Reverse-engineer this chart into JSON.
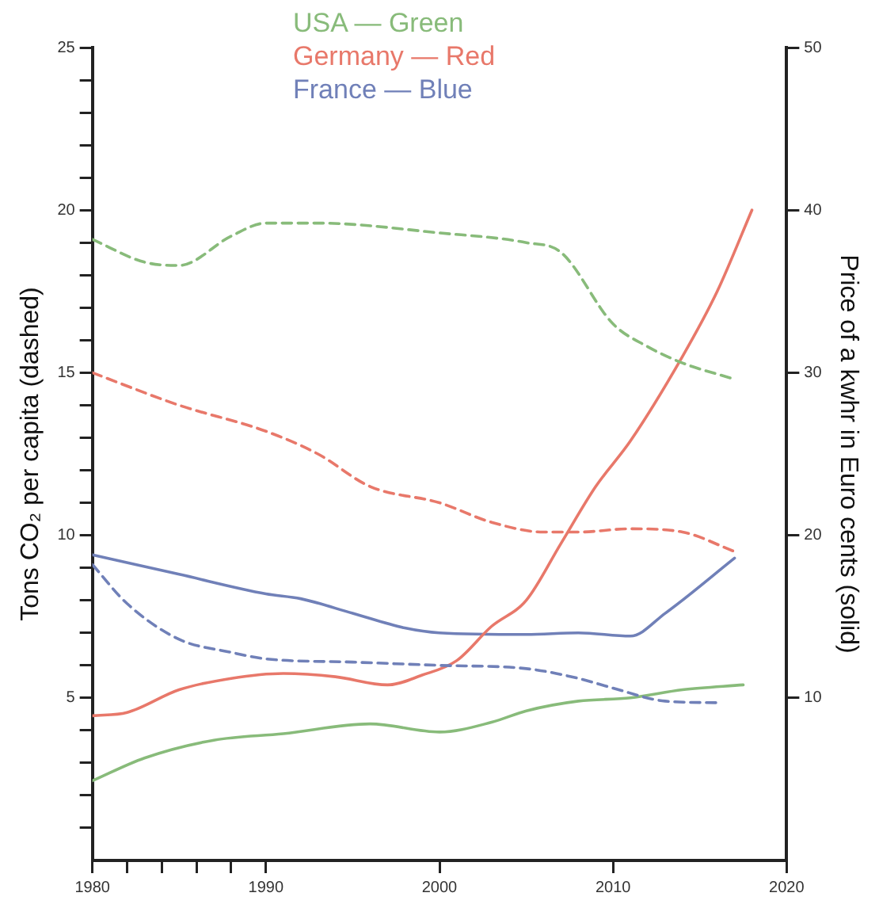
{
  "chart_data": {
    "type": "line",
    "ylabel": "Tons CO₂ per capita (dashed)",
    "y2label": "Price of a kwhr in Euro cents (solid)",
    "legend": "top",
    "grid": false,
    "marker": "none",
    "xlim": [
      1980,
      2020
    ],
    "xticks": [
      1980,
      {
        "value": 1982,
        "label": null
      },
      {
        "value": 1984,
        "label": null
      },
      {
        "value": 1986,
        "label": null
      },
      {
        "value": 1988,
        "label": null
      },
      1990,
      2000,
      2010,
      2020
    ],
    "ylim": [
      0,
      25
    ],
    "yticks": [
      {
        "value": 1,
        "label": null
      },
      {
        "value": 2,
        "label": null
      },
      {
        "value": 3,
        "label": null
      },
      {
        "value": 4,
        "label": null
      },
      5,
      {
        "value": 6,
        "label": null
      },
      {
        "value": 7,
        "label": null
      },
      {
        "value": 8,
        "label": null
      },
      {
        "value": 9,
        "label": null
      },
      10,
      {
        "value": 11,
        "label": null
      },
      {
        "value": 12,
        "label": null
      },
      {
        "value": 13,
        "label": null
      },
      {
        "value": 14,
        "label": null
      },
      15,
      {
        "value": 16,
        "label": null
      },
      {
        "value": 17,
        "label": null
      },
      {
        "value": 18,
        "label": null
      },
      {
        "value": 19,
        "label": null
      },
      20,
      {
        "value": 21,
        "label": null
      },
      {
        "value": 22,
        "label": null
      },
      {
        "value": 23,
        "label": null
      },
      {
        "value": 24,
        "label": null
      },
      25
    ],
    "y2lim": [
      0,
      50
    ],
    "y2ticks": [
      10,
      20,
      30,
      40,
      50
    ],
    "series": [
      {
        "name": "USA — Green",
        "color": "#88bb7a",
        "line_style": "dashed",
        "x": [
          1980,
          1983,
          1985,
          1988,
          1990,
          1993,
          2000,
          2005,
          2007,
          2010,
          2012,
          2014,
          2017
        ],
        "values": [
          19.1,
          18.4,
          18.3,
          19.2,
          19.6,
          19.6,
          19.3,
          19.0,
          18.7,
          16.5,
          15.8,
          15.3,
          14.8
        ]
      },
      {
        "name": "Germany — Red",
        "color": "#e8786a",
        "line_style": "dashed",
        "x": [
          1980,
          1985,
          1990,
          1993,
          1996,
          2000,
          2003,
          2006,
          2008,
          2011,
          2014,
          2017
        ],
        "values": [
          15.0,
          14.0,
          13.2,
          12.5,
          11.5,
          11.0,
          10.4,
          10.1,
          10.1,
          10.2,
          10.1,
          9.5
        ]
      },
      {
        "name": "France — Blue",
        "color": "#7080b8",
        "line_style": "dashed",
        "x": [
          1980,
          1982,
          1985,
          1988,
          1990,
          1995,
          2000,
          2005,
          2008,
          2010,
          2013,
          2016
        ],
        "values": [
          9.1,
          7.9,
          6.8,
          6.4,
          6.2,
          6.1,
          6.0,
          5.9,
          5.6,
          5.3,
          4.9,
          4.85
        ]
      },
      {
        "color": "#88bb7a",
        "line_style": "solid",
        "axis": "y2",
        "x": [
          1980,
          1983,
          1987,
          1991,
          1996,
          2000,
          2003,
          2005,
          2008,
          2011,
          2014,
          2017.5
        ],
        "values": [
          4.9,
          6.3,
          7.4,
          7.8,
          8.4,
          7.9,
          8.5,
          9.2,
          9.8,
          10.0,
          10.5,
          10.8
        ]
      },
      {
        "color": "#e8786a",
        "line_style": "solid",
        "axis": "y2",
        "x": [
          1980,
          1982,
          1985,
          1988,
          1991,
          1994,
          1997,
          1999,
          2001,
          2003,
          2005,
          2007,
          2009,
          2011,
          2014,
          2016,
          2018
        ],
        "values": [
          8.9,
          9.1,
          10.5,
          11.2,
          11.5,
          11.3,
          10.8,
          11.4,
          12.3,
          14.4,
          16.0,
          19.5,
          23.0,
          25.8,
          31.0,
          35.0,
          40.0
        ]
      },
      {
        "color": "#7080b8",
        "line_style": "solid",
        "axis": "y2",
        "x": [
          1980,
          1985,
          1990,
          1992,
          1995,
          1998,
          2000,
          2005,
          2008,
          2011,
          2013,
          2017
        ],
        "values": [
          18.8,
          17.6,
          16.4,
          16.1,
          15.2,
          14.3,
          14.0,
          13.9,
          14.0,
          13.8,
          15.2,
          18.6
        ]
      }
    ]
  }
}
